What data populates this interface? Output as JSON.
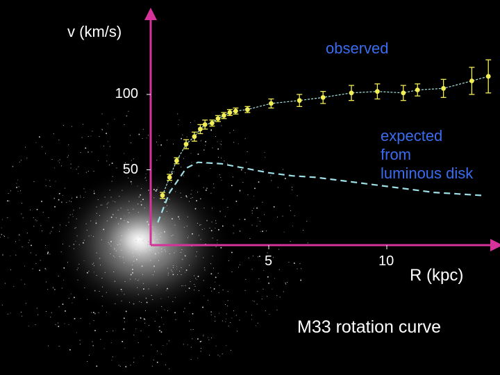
{
  "chart_data": {
    "type": "line",
    "title": "M33 rotation curve",
    "xlabel": "R (kpc)",
    "ylabel": "v (km/s)",
    "xlim": [
      0,
      14.5
    ],
    "ylim": [
      0,
      125
    ],
    "x_ticks": [
      {
        "value": 5,
        "label": "5"
      },
      {
        "value": 10,
        "label": "10"
      }
    ],
    "y_ticks": [
      {
        "value": 50,
        "label": "50"
      },
      {
        "value": 100,
        "label": "100"
      }
    ],
    "series": [
      {
        "name": "observed",
        "color": "#f2ee55",
        "line_color": "#a7e8e4",
        "style": "points-with-errorbars",
        "x": [
          0.5,
          0.8,
          1.1,
          1.5,
          1.85,
          2.1,
          2.3,
          2.6,
          2.85,
          3.1,
          3.35,
          3.6,
          4.1,
          5.1,
          6.3,
          7.3,
          8.5,
          9.6,
          10.7,
          11.3,
          12.4,
          13.6,
          14.3
        ],
        "y": [
          33,
          45,
          56,
          67,
          72,
          77,
          80,
          81,
          84,
          86,
          88,
          89,
          90,
          94,
          96,
          98,
          101,
          102,
          101,
          103,
          104,
          109,
          112
        ],
        "err": [
          2,
          2,
          2,
          3,
          3,
          3,
          3,
          2,
          2,
          2,
          2,
          2,
          2,
          3,
          4,
          4,
          5,
          5,
          5,
          4,
          6,
          9,
          11
        ]
      },
      {
        "name": "expected from luminous disk",
        "color": "#9fe0e8",
        "style": "dashed",
        "x": [
          0.3,
          0.8,
          1.5,
          2.0,
          3.0,
          4.0,
          5.0,
          6.0,
          7.0,
          8.0,
          9.0,
          10.0,
          11.0,
          12.0,
          13.0,
          14.0
        ],
        "y": [
          15,
          35,
          51,
          55,
          54,
          51,
          48,
          46,
          45,
          43,
          41,
          39,
          37,
          35,
          34,
          33
        ]
      }
    ],
    "annotations": [
      {
        "text": "observed",
        "color": "#3b6cf0"
      },
      {
        "text": "expected from luminous disk",
        "lines": [
          "expected",
          "from",
          "luminous disk"
        ],
        "color": "#3b6cf0"
      }
    ],
    "axis_color": "#d6339a",
    "background": "galaxy image"
  }
}
